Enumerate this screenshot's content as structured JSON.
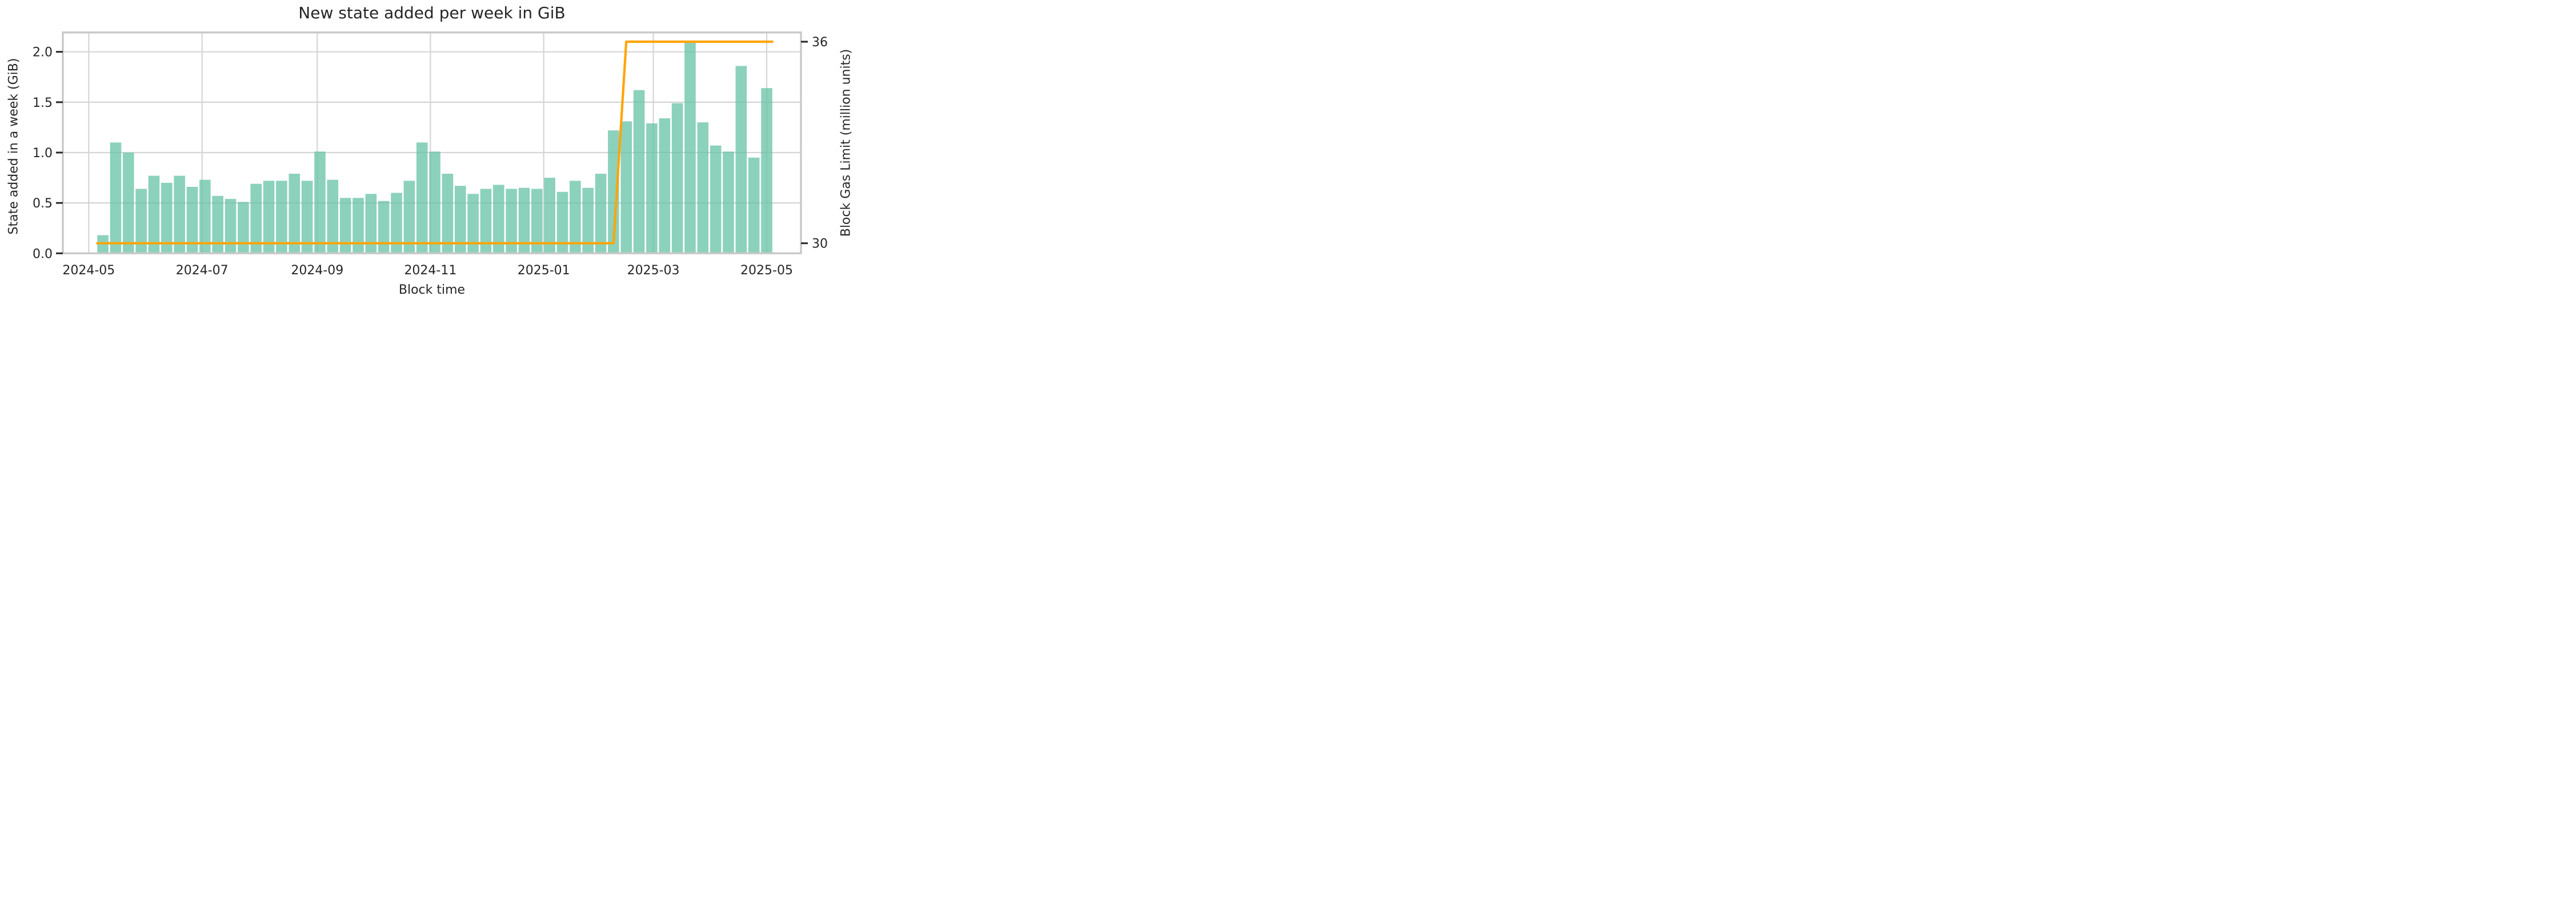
{
  "title": "New state added per week in GiB",
  "x_axis": {
    "label": "Block time",
    "tick_labels": [
      "2024-05",
      "2024-07",
      "2024-09",
      "2024-11",
      "2025-01",
      "2025-03",
      "2025-05"
    ]
  },
  "y_axis_left": {
    "label": "State added in a week (GiB)",
    "tick_labels": [
      "0.0",
      "0.5",
      "1.0",
      "1.5",
      "2.0"
    ],
    "tick_values": [
      0.0,
      0.5,
      1.0,
      1.5,
      2.0
    ]
  },
  "y_axis_right": {
    "label": "Block Gas Limit (million units)",
    "tick_labels": [
      "30",
      "36"
    ],
    "tick_values": [
      30,
      36
    ]
  },
  "colors": {
    "bar_fill": "#66c2a5",
    "bar_alpha": 0.75,
    "line": "#ffa507",
    "grid": "#d5d5d5",
    "spine": "#c9c9c9",
    "tick_mark": "#262626",
    "text": "#262626",
    "background": "#ffffff"
  },
  "chart_data": {
    "type": "bar",
    "title": "New state added per week in GiB",
    "xlabel": "Block time",
    "ylabel": "State added in a week (GiB)",
    "ylabel_right": "Block Gas Limit (million units)",
    "x_unit": "week",
    "n_weeks": 53,
    "x_tick_labels": [
      "2024-05",
      "2024-07",
      "2024-09",
      "2024-11",
      "2025-01",
      "2025-03",
      "2025-05"
    ],
    "ylim_left": [
      0.0,
      2.19
    ],
    "ylim_right": [
      29.6,
      36.1
    ],
    "grid": true,
    "legend": false,
    "series": [
      {
        "name": "State added in a week (GiB)",
        "type": "bar",
        "axis": "left",
        "values": [
          0.18,
          1.1,
          1.0,
          0.64,
          0.77,
          0.7,
          0.77,
          0.66,
          0.73,
          0.57,
          0.54,
          0.51,
          0.69,
          0.72,
          0.72,
          0.79,
          0.72,
          1.01,
          0.73,
          0.55,
          0.55,
          0.59,
          0.52,
          0.6,
          0.72,
          1.1,
          1.01,
          0.79,
          0.67,
          0.59,
          0.64,
          0.68,
          0.64,
          0.65,
          0.64,
          0.75,
          0.61,
          0.72,
          0.65,
          0.79,
          1.22,
          1.31,
          1.62,
          1.29,
          1.34,
          1.49,
          2.09,
          1.3,
          1.07,
          1.01,
          1.86,
          0.95,
          1.64
        ]
      },
      {
        "name": "Block Gas Limit (million units)",
        "type": "line",
        "axis": "right",
        "values": [
          30,
          30,
          30,
          30,
          30,
          30,
          30,
          30,
          30,
          30,
          30,
          30,
          30,
          30,
          30,
          30,
          30,
          30,
          30,
          30,
          30,
          30,
          30,
          30,
          30,
          30,
          30,
          30,
          30,
          30,
          30,
          30,
          30,
          30,
          30,
          30,
          30,
          30,
          30,
          30,
          30,
          36,
          36,
          36,
          36,
          36,
          36,
          36,
          36,
          36,
          36,
          36,
          36
        ]
      }
    ]
  }
}
